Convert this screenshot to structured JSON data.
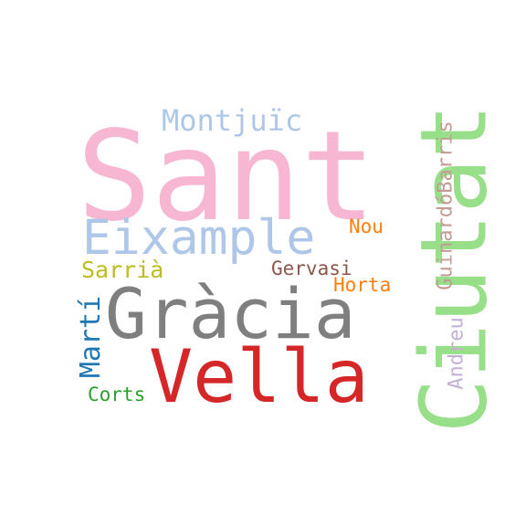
{
  "words": [
    {
      "key": "sant",
      "text": "Sant",
      "color": "#f7b6d2"
    },
    {
      "key": "ciutat",
      "text": "Ciutat",
      "color": "#98df8a"
    },
    {
      "key": "gracia",
      "text": "Gràcia",
      "color": "#7f7f7f"
    },
    {
      "key": "vella",
      "text": "Vella",
      "color": "#d62728"
    },
    {
      "key": "eixample",
      "text": "Eixample",
      "color": "#aec7e8"
    },
    {
      "key": "montjuic",
      "text": "Montjuïc",
      "color": "#aec7e8"
    },
    {
      "key": "guinardobarris",
      "text": "GuinardóBarris",
      "color": "#c49c94"
    },
    {
      "key": "andreu",
      "text": "Andreu",
      "color": "#c5b0d5"
    },
    {
      "key": "nou",
      "text": "Nou",
      "color": "#ff7f0e"
    },
    {
      "key": "sarria",
      "text": "Sarrià",
      "color": "#bcbd22"
    },
    {
      "key": "gervasi",
      "text": "Gervasi",
      "color": "#8c564b"
    },
    {
      "key": "horta",
      "text": "Horta",
      "color": "#ff7f0e"
    },
    {
      "key": "marti",
      "text": "Martí",
      "color": "#1f77b4"
    },
    {
      "key": "corts",
      "text": "Corts",
      "color": "#2ca02c"
    }
  ]
}
